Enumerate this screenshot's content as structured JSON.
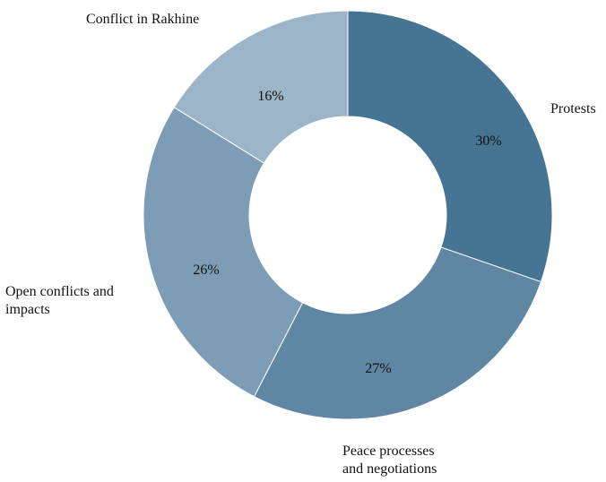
{
  "chart_data": {
    "type": "pie",
    "variant": "donut",
    "title": "",
    "start_angle_note": "slices start at 12 o'clock, clockwise",
    "slices": [
      {
        "label_lines": [
          "Protests"
        ],
        "value": 30,
        "display": "30%",
        "color": "#457592"
      },
      {
        "label_lines": [
          "Peace processes",
          "and negotiations"
        ],
        "value": 27,
        "display": "27%",
        "color": "#5f86a3"
      },
      {
        "label_lines": [
          "Open conflicts and",
          "impacts"
        ],
        "value": 26,
        "display": "26%",
        "color": "#7c9db5"
      },
      {
        "label_lines": [
          "Conflict in Rakhine"
        ],
        "value": 16,
        "display": "16%",
        "color": "#9bb4c8"
      }
    ]
  }
}
